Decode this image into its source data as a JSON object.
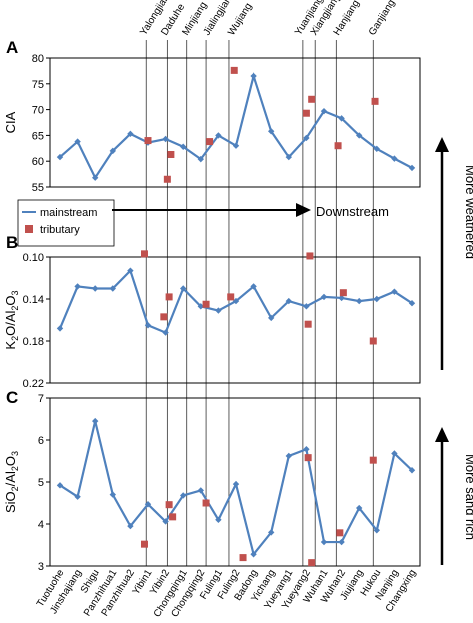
{
  "stations": [
    "Tuotuohe",
    "Jinshajiang",
    "Shigu",
    "Panzhihua1",
    "Panzhihua2",
    "Yibin1",
    "Yibin2",
    "Chongqing1",
    "Chongqing2",
    "Fuling1",
    "Fuling2",
    "Badong",
    "Yichang",
    "Yueyang1",
    "Yueyang2",
    "Wuhan1",
    "Wuhan2",
    "Jiujiang",
    "Hukou",
    "Nanjing",
    "Changxing"
  ],
  "tributaries": [
    "Yalongjiang",
    "Daduhe",
    "Minjiang",
    "Jialingjiang",
    "Wujiang",
    "Yuanjiang",
    "Xiangjiang",
    "Hanjiang",
    "Ganjiang"
  ],
  "legend": {
    "mainstream": "mainstream",
    "tributary": "tributary"
  },
  "annotations": {
    "downstream": "Downstream",
    "more_weathered": "More weathered",
    "more_sand_rich": "More sand rich"
  },
  "colors": {
    "mainstream": "#4f81bd",
    "tributary": "#c0504d"
  },
  "chart_data": [
    {
      "panel": "A",
      "type": "line",
      "ylabel": "CIA",
      "ylim": [
        55,
        80
      ],
      "yticks": [
        "55",
        "60",
        "65",
        "70",
        "75",
        "80"
      ],
      "reversed": false,
      "mainstream": [
        60.8,
        63.8,
        56.8,
        62.0,
        65.3,
        63.6,
        64.3,
        62.8,
        60.4,
        65.0,
        63.0,
        76.5,
        65.8,
        60.8,
        64.5,
        69.7,
        68.3,
        65.0,
        62.4,
        60.5,
        58.7
      ],
      "tributary": [
        {
          "x": 5.0,
          "y": 64.0
        },
        {
          "x": 6.1,
          "y": 56.5
        },
        {
          "x": 6.3,
          "y": 61.3
        },
        {
          "x": 8.5,
          "y": 63.8
        },
        {
          "x": 9.9,
          "y": 77.6
        },
        {
          "x": 14.0,
          "y": 69.3
        },
        {
          "x": 14.3,
          "y": 72.0
        },
        {
          "x": 15.8,
          "y": 63.0
        },
        {
          "x": 17.9,
          "y": 71.6
        }
      ]
    },
    {
      "panel": "B",
      "type": "line",
      "ylabel": "K2O/Al2O3",
      "ylim": [
        0.1,
        0.22
      ],
      "yticks": [
        "0.10",
        "0.14",
        "0.18",
        "0.22"
      ],
      "reversed": true,
      "mainstream": [
        0.168,
        0.128,
        0.13,
        0.13,
        0.113,
        0.165,
        0.172,
        0.13,
        0.147,
        0.151,
        0.142,
        0.128,
        0.158,
        0.142,
        0.147,
        0.138,
        0.139,
        0.142,
        0.14,
        0.133,
        0.144
      ],
      "tributary": [
        {
          "x": 4.8,
          "y": 0.097
        },
        {
          "x": 5.9,
          "y": 0.157
        },
        {
          "x": 6.2,
          "y": 0.138
        },
        {
          "x": 8.3,
          "y": 0.145
        },
        {
          "x": 9.7,
          "y": 0.138
        },
        {
          "x": 14.1,
          "y": 0.164
        },
        {
          "x": 14.2,
          "y": 0.099
        },
        {
          "x": 16.1,
          "y": 0.134
        },
        {
          "x": 17.8,
          "y": 0.18
        }
      ]
    },
    {
      "panel": "C",
      "type": "line",
      "ylabel": "SiO2/Al2O3",
      "ylim": [
        3,
        7
      ],
      "yticks": [
        "3",
        "4",
        "5",
        "6",
        "7"
      ],
      "reversed": false,
      "mainstream": [
        4.92,
        4.65,
        6.45,
        4.7,
        3.95,
        4.47,
        4.06,
        4.68,
        4.8,
        4.1,
        4.95,
        3.28,
        3.8,
        5.62,
        5.78,
        3.57,
        3.57,
        4.38,
        3.85,
        5.68,
        5.28
      ],
      "tributary": [
        {
          "x": 4.8,
          "y": 3.52
        },
        {
          "x": 6.2,
          "y": 4.46
        },
        {
          "x": 6.4,
          "y": 4.17
        },
        {
          "x": 8.3,
          "y": 4.5
        },
        {
          "x": 10.4,
          "y": 3.2
        },
        {
          "x": 14.1,
          "y": 5.58
        },
        {
          "x": 14.3,
          "y": 3.08
        },
        {
          "x": 15.9,
          "y": 3.79
        },
        {
          "x": 17.8,
          "y": 5.52
        }
      ]
    }
  ],
  "labels_series": {
    "mainstream_marks": "mainstream",
    "tributary_marks": "tributary"
  },
  "tex": {
    "k2o": [
      "K",
      "2",
      "O/Al",
      "2",
      "O",
      "3"
    ],
    "sio2": [
      "SiO",
      "2",
      "/Al",
      "2",
      "O",
      "3"
    ]
  },
  "panel_letters": [
    "A",
    "B",
    "C"
  ]
}
